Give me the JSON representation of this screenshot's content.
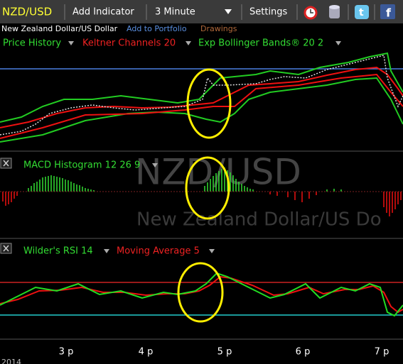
{
  "toolbar": {
    "symbol": "NZD/USD",
    "add_indicator": "Add Indicator",
    "interval": "3 Minute",
    "settings": "Settings"
  },
  "info": {
    "name": "New Zealand Dollar/US Dollar",
    "add_to_portfolio": "Add to Portfolio",
    "drawings": "Drawings"
  },
  "indicators": [
    "Price History",
    "Keltner Channels 20",
    "Exp Bollinger Bands® 20 2"
  ],
  "macd": {
    "label": "MACD Histogram 12 26 9"
  },
  "rsi": {
    "labels": [
      "Wilder's RSI 14",
      "Moving Average 5"
    ]
  },
  "watermark": {
    "symbol": "NZD/USD",
    "name": "New Zealand Dollar/US Do"
  },
  "x_axis": {
    "labels": [
      "3 p",
      "4 p",
      "5 p",
      "6 p",
      "7 p"
    ],
    "year": "2014"
  }
}
